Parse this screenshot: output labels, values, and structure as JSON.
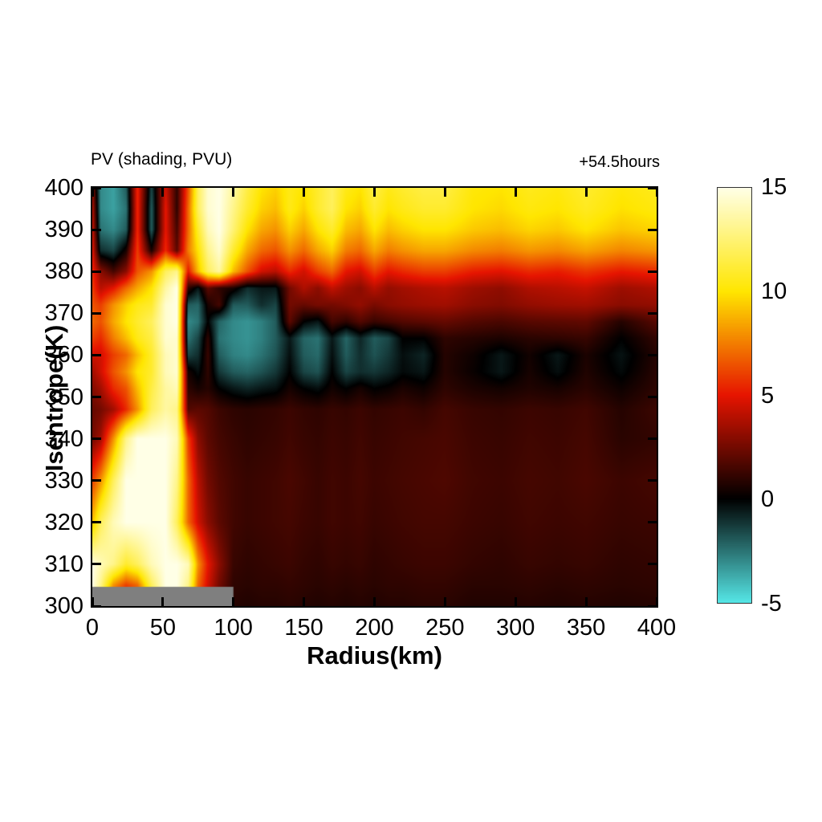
{
  "chart_data": {
    "type": "heatmap",
    "title": "PV (shading, PVU)",
    "annotation": "+54.5hours",
    "xlabel": "Radius(km)",
    "ylabel": "Isentrope(K)",
    "units": "PVU",
    "xlim": [
      0,
      400
    ],
    "ylim": [
      300,
      400
    ],
    "x_ticks": [
      0,
      50,
      100,
      150,
      200,
      250,
      300,
      350,
      400
    ],
    "y_ticks": [
      300,
      310,
      320,
      330,
      340,
      350,
      360,
      370,
      380,
      390,
      400
    ],
    "colorbar": {
      "min": -5,
      "max": 15,
      "tick_labels_top_to_bottom": [
        "15",
        "10",
        "5",
        "0",
        "-5"
      ],
      "tick_values": [
        15,
        10,
        5,
        0,
        -5
      ],
      "stops": [
        {
          "v": -5,
          "c": "#55E6E6"
        },
        {
          "v": 0,
          "c": "#000000"
        },
        {
          "v": 5,
          "c": "#E61400"
        },
        {
          "v": 10,
          "c": "#FFE600"
        },
        {
          "v": 15,
          "c": "#FFFFE6"
        }
      ]
    },
    "mask_bar": {
      "x": [
        0,
        100
      ],
      "y": [
        300,
        304.6
      ],
      "color": "#7F7F7F"
    },
    "grid": {
      "x": [
        0,
        6,
        15,
        24,
        32,
        42,
        52,
        60,
        68,
        75,
        82,
        90,
        100,
        110,
        120,
        130,
        140,
        150,
        160,
        170,
        180,
        190,
        200,
        210,
        220,
        235,
        250,
        270,
        290,
        310,
        330,
        350,
        375,
        400
      ],
      "y_top_to_bottom": [
        400,
        395,
        390,
        385,
        380,
        376,
        372,
        368,
        364,
        360,
        356,
        352,
        347,
        340,
        330,
        320,
        310,
        305,
        300
      ],
      "values": [
        [
          3,
          -3,
          -3.5,
          -2,
          5.5,
          -1.5,
          4.5,
          1,
          6.5,
          12,
          14.5,
          15,
          13.5,
          11.5,
          10,
          9.5,
          10.5,
          10,
          11,
          12,
          10.5,
          10,
          11.5,
          10.5,
          11,
          11.5,
          11.5,
          10.2,
          10,
          10.6,
          10.3,
          11,
          10.2,
          10.6
        ],
        [
          4,
          -3,
          -3.5,
          -2.5,
          5.5,
          -2,
          5,
          1,
          7,
          12,
          14.5,
          15,
          13,
          11,
          9.5,
          9,
          10.5,
          9.5,
          11,
          12,
          10,
          9.5,
          11,
          10,
          10.5,
          11,
          11,
          10,
          9.7,
          10.3,
          10,
          10.7,
          9.9,
          10.3
        ],
        [
          4.5,
          -2.5,
          -3,
          -2,
          5.5,
          -2,
          5,
          1.5,
          7,
          11,
          14,
          15,
          12.5,
          10,
          8.5,
          8,
          9.5,
          8.5,
          10,
          11,
          9,
          8.5,
          10,
          9,
          9.5,
          10,
          10,
          9.3,
          9,
          9.6,
          9.3,
          10,
          9.2,
          9.6
        ],
        [
          5,
          -1,
          -1.5,
          0.5,
          6,
          0.5,
          5.5,
          2,
          7.5,
          10,
          13,
          14.5,
          11,
          8.5,
          7,
          6.5,
          8,
          7,
          8.5,
          9.5,
          7.5,
          7,
          8.5,
          7.5,
          8,
          8.5,
          8.5,
          7.8,
          7.5,
          8.1,
          7.8,
          8.4,
          7.7,
          8.1
        ],
        [
          5.5,
          3,
          1.5,
          3,
          6.5,
          8,
          12,
          13,
          5,
          9,
          12,
          13.5,
          9,
          6.5,
          4.5,
          4,
          5.5,
          4.5,
          6,
          7,
          5,
          4.5,
          6,
          5,
          5.5,
          6,
          6,
          5.2,
          4.9,
          5.5,
          5.2,
          5.8,
          5.1,
          5.5
        ],
        [
          6,
          4,
          5,
          7,
          8.5,
          10,
          13.5,
          15,
          1,
          -0.5,
          2,
          1,
          0.5,
          -1,
          -0.5,
          -0.5,
          2.5,
          3.8,
          3,
          4.2,
          3.4,
          3,
          4,
          3.2,
          3.5,
          3.8,
          4,
          3.4,
          3.1,
          3.8,
          4,
          4.3,
          3.4,
          3.8
        ],
        [
          6.5,
          6,
          8,
          9.5,
          10.5,
          11,
          14.5,
          15,
          -2,
          -2.2,
          0.5,
          1.5,
          -2,
          -2,
          -1,
          -1.5,
          2.5,
          2.2,
          2.6,
          2.5,
          2.8,
          3.2,
          2.6,
          3,
          3.2,
          3.4,
          3.5,
          3,
          2.8,
          3.2,
          3.4,
          3.5,
          3,
          3.2
        ],
        [
          7,
          6.5,
          8.5,
          10,
          11,
          12,
          14.5,
          15,
          -3,
          -2.5,
          0,
          -2.2,
          -3,
          -3.2,
          -2.8,
          -2,
          2,
          0,
          -0.5,
          1.5,
          1,
          1.8,
          1.2,
          1.5,
          1.8,
          2,
          2.2,
          1.8,
          1.6,
          1.9,
          2,
          2.1,
          0.8,
          1.9
        ],
        [
          6,
          5.5,
          7.5,
          9,
          10.5,
          11.5,
          14.5,
          14.5,
          -2.5,
          -1.5,
          1,
          -2.5,
          -3,
          -3.2,
          -2.8,
          -2,
          -0.5,
          -2.2,
          -2.5,
          -0.5,
          -2.2,
          -0.8,
          -2,
          -1.5,
          0,
          0,
          1,
          0.8,
          0.6,
          0.9,
          1,
          1.2,
          0,
          1.1
        ],
        [
          4.5,
          4.5,
          6,
          7,
          9,
          11,
          14,
          14.5,
          -1.5,
          -1,
          1.2,
          -2,
          -2.8,
          -3,
          -2.5,
          -1.8,
          -0.3,
          -2,
          -2.3,
          -0.3,
          -2,
          -1,
          -1.8,
          -1.2,
          -0.3,
          -0.8,
          0.8,
          0.3,
          -0.5,
          0.4,
          -0.5,
          0.6,
          -0.4,
          0.8
        ],
        [
          3.5,
          4.5,
          6.5,
          8,
          10,
          11,
          14,
          14.5,
          0.5,
          -0.3,
          1,
          -1.2,
          -2,
          -2.2,
          -1.8,
          -1.2,
          0,
          -1.5,
          -1.8,
          0,
          -1.5,
          -1,
          -1.2,
          -0.8,
          -0.2,
          -0.5,
          0.8,
          0.2,
          -0.5,
          0.5,
          -0.3,
          0.7,
          -0.2,
          0.9
        ],
        [
          2.8,
          3.5,
          5.5,
          6.5,
          9,
          11.5,
          13.5,
          14,
          1,
          0.5,
          0.8,
          0,
          -0.5,
          -0.8,
          -0.5,
          -0.3,
          0.5,
          0,
          -0.3,
          0.4,
          0,
          0.5,
          0,
          0.2,
          0.6,
          0.3,
          1,
          0.6,
          0.4,
          0.7,
          0.5,
          0.9,
          0.3,
          1
        ],
        [
          2.2,
          2.5,
          3.5,
          5.5,
          8,
          12,
          13.5,
          13,
          1.8,
          2,
          1.8,
          1.3,
          1,
          0.9,
          1,
          1.1,
          1.3,
          1.1,
          1,
          1.2,
          1.1,
          1.3,
          1.1,
          1.2,
          1.3,
          1.1,
          1.5,
          1.2,
          1.1,
          1.3,
          1.2,
          1.4,
          0.8,
          1.3
        ],
        [
          2.5,
          3.5,
          8,
          13,
          15,
          15,
          15,
          14,
          6,
          3,
          2,
          1.5,
          1.2,
          1,
          1.1,
          1.2,
          1.4,
          1.2,
          1.1,
          1.3,
          1.2,
          1.4,
          1.2,
          1.3,
          1.4,
          1.5,
          1.6,
          1.3,
          1.2,
          1.4,
          1.3,
          1.5,
          0.9,
          1.1
        ],
        [
          6,
          8,
          12,
          15,
          15,
          15,
          15,
          13,
          7,
          4,
          2.5,
          1.8,
          1.4,
          1.2,
          1.3,
          1.4,
          1.6,
          1.4,
          1.2,
          1.4,
          1.3,
          1.5,
          1.3,
          1.4,
          1.5,
          1.6,
          1.7,
          1.4,
          1.3,
          1.5,
          1.4,
          1.6,
          1.3,
          1.5
        ],
        [
          9,
          12,
          14,
          15,
          15,
          15,
          15,
          12,
          7,
          4.5,
          3,
          2,
          1.4,
          1.2,
          1.3,
          1.4,
          1.5,
          1.3,
          1.2,
          1.4,
          1.3,
          1.4,
          1.2,
          1.3,
          1.4,
          1.5,
          1.5,
          1.3,
          1.2,
          1.4,
          1.3,
          1.4,
          1.2,
          1.3
        ],
        [
          15,
          14,
          13,
          11,
          12,
          14,
          15,
          15,
          14,
          8,
          5,
          3,
          1.2,
          1,
          1.1,
          1.2,
          1.3,
          1.1,
          1,
          1.2,
          1.1,
          1.2,
          1,
          1.1,
          1.2,
          1.3,
          1.3,
          1.1,
          1,
          1.2,
          1.1,
          1.2,
          1,
          1.1
        ],
        [
          15,
          13,
          8,
          6,
          7,
          12,
          15,
          15,
          13,
          7,
          4.5,
          2.5,
          1,
          0.9,
          1,
          1,
          1.1,
          1,
          0.9,
          1,
          0.9,
          1,
          0.9,
          1,
          1,
          1.1,
          1.1,
          0.9,
          0.9,
          1,
          0.9,
          1,
          0.9,
          1
        ],
        [
          14,
          10,
          5,
          4,
          5,
          10,
          14,
          13,
          10,
          5,
          3,
          1.5,
          0.8,
          0.7,
          0.8,
          0.8,
          0.9,
          0.8,
          0.7,
          0.8,
          0.7,
          0.8,
          0.7,
          0.8,
          0.8,
          0.9,
          0.9,
          0.7,
          0.7,
          0.8,
          0.7,
          0.8,
          0.7,
          0.8
        ]
      ]
    }
  }
}
